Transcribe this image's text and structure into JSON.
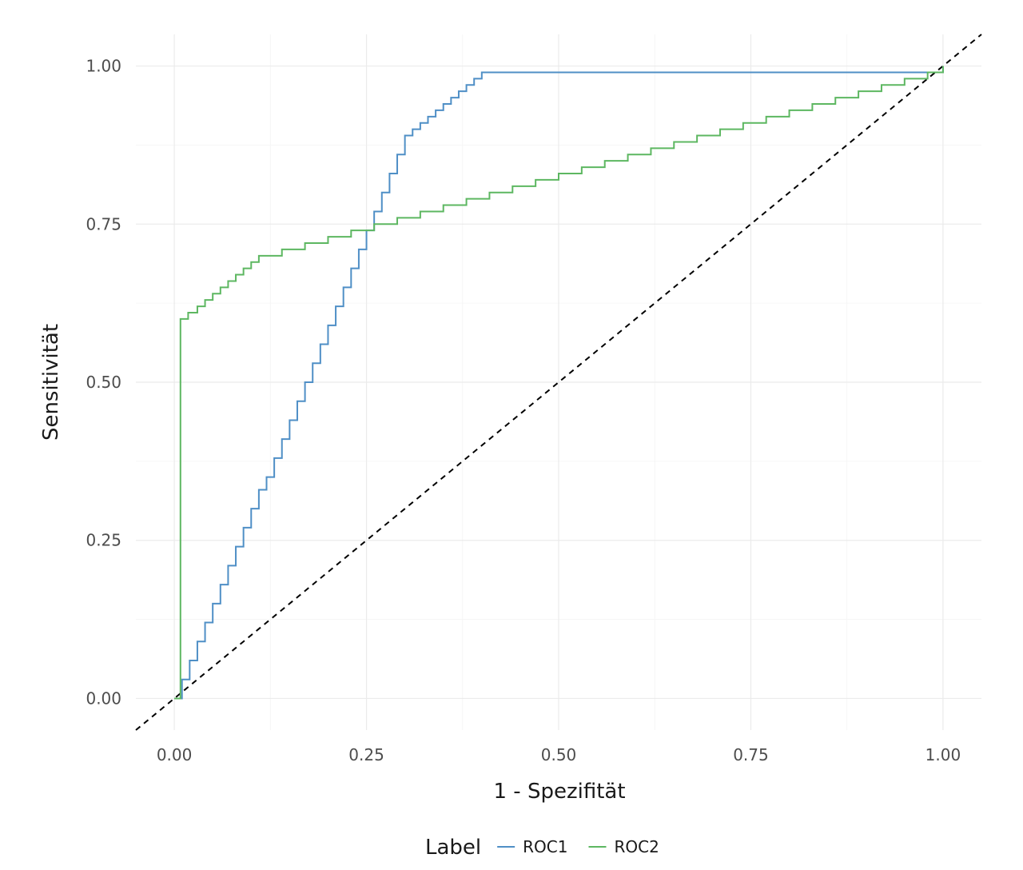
{
  "chart_data": {
    "type": "line",
    "title": "",
    "xlabel": "1 - Spezifität",
    "ylabel": "Sensitivität",
    "xlim": [
      -0.05,
      1.05
    ],
    "ylim": [
      -0.05,
      1.05
    ],
    "x_ticks": [
      0,
      0.25,
      0.5,
      0.75,
      1
    ],
    "y_ticks": [
      0,
      0.25,
      0.5,
      0.75,
      1
    ],
    "x_tick_labels": [
      "0.00",
      "0.25",
      "0.50",
      "0.75",
      "1.00"
    ],
    "y_tick_labels": [
      "0.00",
      "0.25",
      "0.50",
      "0.75",
      "1.00"
    ],
    "grid": true,
    "legend": {
      "title": "Label",
      "position": "bottom"
    },
    "reference_line": {
      "style": "dashed",
      "color": "#000000",
      "slope": 1,
      "intercept": 0
    },
    "series": [
      {
        "name": "ROC1",
        "color": "#4f8fc6",
        "step": true,
        "x": [
          0,
          0.01,
          0.02,
          0.03,
          0.04,
          0.05,
          0.06,
          0.07,
          0.08,
          0.09,
          0.1,
          0.11,
          0.12,
          0.13,
          0.14,
          0.15,
          0.16,
          0.17,
          0.18,
          0.19,
          0.2,
          0.21,
          0.22,
          0.23,
          0.24,
          0.25,
          0.26,
          0.27,
          0.28,
          0.29,
          0.3,
          0.31,
          0.32,
          0.33,
          0.34,
          0.35,
          0.36,
          0.37,
          0.38,
          0.39,
          0.4,
          1.0
        ],
        "y": [
          0,
          0.03,
          0.06,
          0.09,
          0.12,
          0.15,
          0.18,
          0.21,
          0.24,
          0.27,
          0.3,
          0.33,
          0.35,
          0.38,
          0.41,
          0.44,
          0.47,
          0.5,
          0.53,
          0.56,
          0.59,
          0.62,
          0.65,
          0.68,
          0.71,
          0.74,
          0.77,
          0.8,
          0.83,
          0.86,
          0.89,
          0.9,
          0.91,
          0.92,
          0.93,
          0.94,
          0.95,
          0.96,
          0.97,
          0.98,
          0.99,
          1.0
        ]
      },
      {
        "name": "ROC2",
        "color": "#5db761",
        "step": true,
        "x": [
          0,
          0.008,
          0.018,
          0.03,
          0.04,
          0.05,
          0.06,
          0.07,
          0.08,
          0.09,
          0.1,
          0.11,
          0.14,
          0.17,
          0.2,
          0.23,
          0.26,
          0.29,
          0.32,
          0.35,
          0.38,
          0.41,
          0.44,
          0.47,
          0.5,
          0.53,
          0.56,
          0.59,
          0.62,
          0.65,
          0.68,
          0.71,
          0.74,
          0.77,
          0.8,
          0.83,
          0.86,
          0.89,
          0.92,
          0.95,
          0.98,
          1.0
        ],
        "y": [
          0,
          0.6,
          0.61,
          0.62,
          0.63,
          0.64,
          0.65,
          0.66,
          0.67,
          0.68,
          0.69,
          0.7,
          0.71,
          0.72,
          0.73,
          0.74,
          0.75,
          0.76,
          0.77,
          0.78,
          0.79,
          0.8,
          0.81,
          0.82,
          0.83,
          0.84,
          0.85,
          0.86,
          0.87,
          0.88,
          0.89,
          0.9,
          0.91,
          0.92,
          0.93,
          0.94,
          0.95,
          0.96,
          0.97,
          0.98,
          0.99,
          1.0
        ]
      }
    ]
  }
}
